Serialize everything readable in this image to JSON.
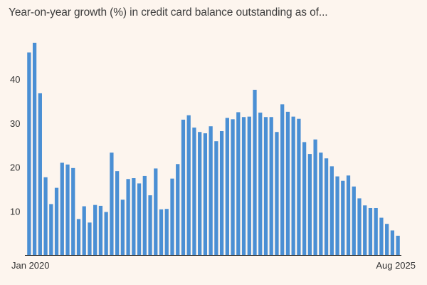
{
  "chart_data": {
    "type": "bar",
    "title": "Year-on-year growth (%) in credit card balance outstanding as of...",
    "xlabel": "",
    "ylabel": "",
    "ylim": [
      0,
      50
    ],
    "yticks": [
      10,
      20,
      30,
      40
    ],
    "x_tick_labels": [
      {
        "index": 0,
        "label": "Jan 2020"
      },
      {
        "index": 67,
        "label": "Aug 2025"
      }
    ],
    "categories": [
      "2020-01",
      "2020-02",
      "2020-03",
      "2020-04",
      "2020-05",
      "2020-06",
      "2020-07",
      "2020-08",
      "2020-09",
      "2020-10",
      "2020-11",
      "2020-12",
      "2021-01",
      "2021-02",
      "2021-03",
      "2021-04",
      "2021-05",
      "2021-06",
      "2021-07",
      "2021-08",
      "2021-09",
      "2021-10",
      "2021-11",
      "2021-12",
      "2022-01",
      "2022-02",
      "2022-03",
      "2022-04",
      "2022-05",
      "2022-06",
      "2022-07",
      "2022-08",
      "2022-09",
      "2022-10",
      "2022-11",
      "2022-12",
      "2023-01",
      "2023-02",
      "2023-03",
      "2023-04",
      "2023-05",
      "2023-06",
      "2023-07",
      "2023-08",
      "2023-09",
      "2023-10",
      "2023-11",
      "2023-12",
      "2024-01",
      "2024-02",
      "2024-03",
      "2024-04",
      "2024-05",
      "2024-06",
      "2024-07",
      "2024-08",
      "2024-09",
      "2024-10",
      "2024-11",
      "2024-12",
      "2025-01",
      "2025-02",
      "2025-03",
      "2025-04",
      "2025-05",
      "2025-06",
      "2025-07",
      "2025-08"
    ],
    "values": [
      46.1,
      48.3,
      36.8,
      17.7,
      11.6,
      15.3,
      21.0,
      20.6,
      19.8,
      8.2,
      11.1,
      7.4,
      11.4,
      11.2,
      9.8,
      23.3,
      19.1,
      12.6,
      17.3,
      17.5,
      16.3,
      18.0,
      13.6,
      19.7,
      10.4,
      10.5,
      17.4,
      20.7,
      30.8,
      31.8,
      29.0,
      28.0,
      27.7,
      29.3,
      25.9,
      28.2,
      31.2,
      30.9,
      32.5,
      31.4,
      31.5,
      37.6,
      32.4,
      31.4,
      31.4,
      28.0,
      34.3,
      32.6,
      31.5,
      31.0,
      25.7,
      23.0,
      26.3,
      23.3,
      22.0,
      20.2,
      17.9,
      16.9,
      18.1,
      15.6,
      12.9,
      11.3,
      10.7,
      10.7,
      8.5,
      7.1,
      5.6,
      4.4
    ],
    "bar_color": "#4a8fd4",
    "background_color": "#fdf5ee",
    "grid": false,
    "legend": "none"
  }
}
